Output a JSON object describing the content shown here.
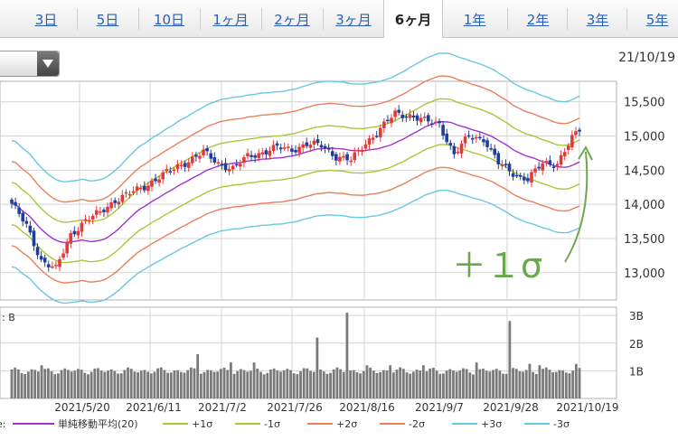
{
  "tabs": [
    {
      "label": "3日",
      "active": false
    },
    {
      "label": "5日",
      "active": false
    },
    {
      "label": "10日",
      "active": false
    },
    {
      "label": "1ヶ月",
      "active": false
    },
    {
      "label": "2ヶ月",
      "active": false
    },
    {
      "label": "3ヶ月",
      "active": false
    },
    {
      "label": "6ヶ月",
      "active": true
    },
    {
      "label": "1年",
      "active": false
    },
    {
      "label": "2年",
      "active": false
    },
    {
      "label": "3年",
      "active": false
    },
    {
      "label": "5年",
      "active": false
    }
  ],
  "date_stamp": "21/10/19",
  "annotation": "＋１σ",
  "colors": {
    "up": "#e23a3a",
    "down": "#1f3d9c",
    "sma": "#a033cc",
    "band1": "#a8c83a",
    "band2": "#e8805a",
    "band3": "#69c8e0",
    "annotation": "#6aa84f",
    "volume": "#7a7a7a"
  },
  "chart_data": {
    "type": "candlestick",
    "price_axis": {
      "ticks": [
        "15,500",
        "15,000",
        "14,500",
        "14,000",
        "13,500",
        "13,000"
      ],
      "ylim": [
        12600,
        15800
      ]
    },
    "volume_axis": {
      "ticks": [
        "3B",
        "2B",
        "1B"
      ],
      "ylim": [
        0,
        3.3
      ],
      "label": ": B"
    },
    "date_ticks": [
      "2021/5/20",
      "2021/6/11",
      "2021/7/2",
      "2021/7/26",
      "2021/8/16",
      "2021/9/7",
      "2021/9/28",
      "2021/10/19"
    ],
    "legend": [
      {
        "label": "単純移動平均(20)",
        "key": "sma"
      },
      {
        "label": "+1σ",
        "key": "band1"
      },
      {
        "label": "-1σ",
        "key": "band1"
      },
      {
        "label": "+2σ",
        "key": "band2"
      },
      {
        "label": "-2σ",
        "key": "band2"
      },
      {
        "label": "+3σ",
        "key": "band3"
      },
      {
        "label": "-3σ",
        "key": "band3"
      }
    ],
    "legend_prefix": "e:",
    "close_anchors": [
      [
        0,
        14010
      ],
      [
        4,
        13680
      ],
      [
        8,
        13180
      ],
      [
        12,
        13050
      ],
      [
        16,
        13560
      ],
      [
        20,
        13760
      ],
      [
        24,
        13880
      ],
      [
        28,
        14060
      ],
      [
        32,
        14160
      ],
      [
        36,
        14260
      ],
      [
        40,
        14400
      ],
      [
        44,
        14520
      ],
      [
        48,
        14640
      ],
      [
        52,
        14760
      ],
      [
        56,
        14600
      ],
      [
        60,
        14520
      ],
      [
        64,
        14700
      ],
      [
        68,
        14760
      ],
      [
        72,
        14830
      ],
      [
        76,
        14800
      ],
      [
        80,
        14880
      ],
      [
        84,
        14860
      ],
      [
        88,
        14700
      ],
      [
        92,
        14640
      ],
      [
        96,
        14900
      ],
      [
        100,
        15100
      ],
      [
        104,
        15330
      ],
      [
        108,
        15300
      ],
      [
        112,
        15220
      ],
      [
        116,
        15180
      ],
      [
        120,
        14720
      ],
      [
        124,
        15000
      ],
      [
        128,
        14960
      ],
      [
        132,
        14600
      ],
      [
        136,
        14460
      ],
      [
        140,
        14360
      ],
      [
        144,
        14600
      ],
      [
        148,
        14600
      ],
      [
        152,
        14960
      ],
      [
        154,
        15090
      ]
    ],
    "band_sd_percent": 0.022,
    "volumes": [
      [
        9,
        1.2
      ],
      [
        56,
        1.6
      ],
      [
        66,
        1.3
      ],
      [
        73,
        1.3
      ],
      [
        92,
        2.2
      ],
      [
        101,
        3.1
      ],
      [
        107,
        1.2
      ],
      [
        114,
        1.2
      ],
      [
        124,
        1.2
      ],
      [
        140,
        1.3
      ],
      [
        150,
        2.8
      ],
      [
        156,
        1.25
      ],
      [
        159,
        1.2
      ],
      [
        170,
        1.25
      ]
    ],
    "volume_base": 1.0
  }
}
